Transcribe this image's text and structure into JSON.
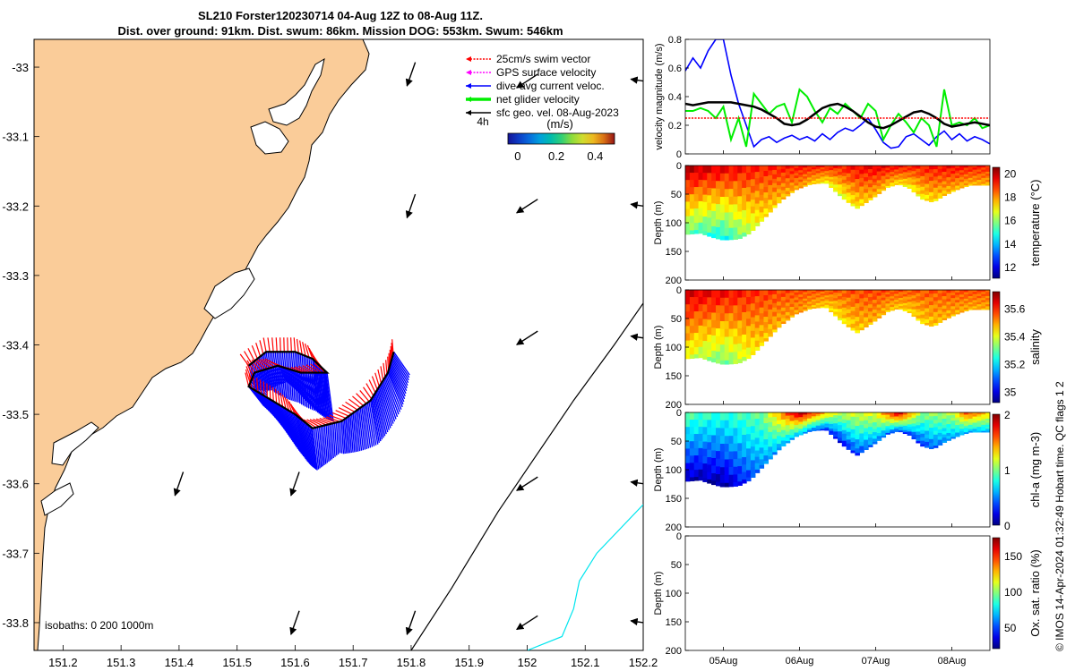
{
  "title_line1": "SL210 Forster120230714 04-Aug 12Z to 08-Aug 11Z.",
  "title_line2": "Dist. over ground: 91km. Dist. swum: 86km. Mission DOG: 553km. Swum: 546km",
  "footer_credit": "© IMOS 14-Apr-2024 01:32:49 Hobart time. QC flags 1  2",
  "colors": {
    "land": "#FACC99",
    "swim_vector": "#FF0000",
    "gps_velocity": "#FF00FF",
    "current": "#0000FF",
    "net_velocity": "#00EE00",
    "geo_velocity": "#000000",
    "isobath_200": "#000000",
    "isobath_1000": "#00E5EE"
  },
  "chart_data": [
    {
      "type": "map",
      "name": "glider track map",
      "xlim": [
        151.15,
        152.2
      ],
      "ylim": [
        -33.84,
        -32.96
      ],
      "x_ticks": [
        "151.2",
        "151.3",
        "151.4",
        "151.5",
        "151.6",
        "151.7",
        "151.8",
        "151.9",
        "152",
        "152.1",
        "152.2"
      ],
      "x_tick_values": [
        151.2,
        151.3,
        151.4,
        151.5,
        151.6,
        151.7,
        151.8,
        151.9,
        152.0,
        152.1,
        152.2
      ],
      "y_ticks": [
        "-33",
        "-33.1",
        "-33.2",
        "-33.3",
        "-33.4",
        "-33.5",
        "-33.6",
        "-33.7",
        "-33.8"
      ],
      "y_tick_values": [
        -33.0,
        -33.1,
        -33.2,
        -33.3,
        -33.4,
        -33.5,
        -33.6,
        -33.7,
        -33.8
      ],
      "legend": [
        {
          "label": "25cm/s swim vector",
          "color": "#FF0000",
          "style": "dotted-arrow"
        },
        {
          "label": "GPS surface velocity",
          "color": "#FF00FF",
          "style": "dotted-arrow"
        },
        {
          "label": "dive-avg current veloc.",
          "color": "#0000FF",
          "style": "arrow"
        },
        {
          "label": "net glider velocity",
          "color": "#00EE00",
          "style": "thick-arrow"
        },
        {
          "label": "sfc geo. vel. 08-Aug-2023",
          "color": "#000000",
          "style": "arrow"
        }
      ],
      "colorbar": {
        "label": "(m/s)",
        "ticks": [
          "0",
          "0.2",
          "0.4"
        ],
        "range": [
          -0.05,
          0.5
        ],
        "period_label": "4h"
      },
      "isobath_label": "isobaths: 0  200  1000m",
      "track": [
        [
          151.52,
          -33.43
        ],
        [
          151.55,
          -33.41
        ],
        [
          151.6,
          -33.41
        ],
        [
          151.63,
          -33.42
        ],
        [
          151.655,
          -33.44
        ],
        [
          151.61,
          -33.44
        ],
        [
          151.57,
          -33.43
        ],
        [
          151.53,
          -33.44
        ],
        [
          151.52,
          -33.46
        ],
        [
          151.56,
          -33.48
        ],
        [
          151.6,
          -33.5
        ],
        [
          151.63,
          -33.52
        ],
        [
          151.68,
          -33.51
        ],
        [
          151.73,
          -33.48
        ],
        [
          151.76,
          -33.44
        ],
        [
          151.77,
          -33.41
        ]
      ],
      "isobath_200": [
        [
          151.8,
          -33.84
        ],
        [
          151.87,
          -33.75
        ],
        [
          151.95,
          -33.64
        ],
        [
          152.08,
          -33.48
        ],
        [
          152.15,
          -33.4
        ],
        [
          152.2,
          -33.34
        ]
      ],
      "isobath_1000": [
        [
          152.0,
          -33.84
        ],
        [
          152.06,
          -33.82
        ],
        [
          152.08,
          -33.78
        ],
        [
          152.09,
          -33.74
        ],
        [
          152.12,
          -33.7
        ],
        [
          152.2,
          -33.63
        ]
      ],
      "geo_arrows": [
        {
          "lon": 151.8,
          "lat": -33.01,
          "dir": "SSW"
        },
        {
          "lon": 152.0,
          "lat": -33.02,
          "dir": "SW"
        },
        {
          "lon": 152.2,
          "lat": -33.02,
          "dir": "W"
        },
        {
          "lon": 151.8,
          "lat": -33.2,
          "dir": "SSW"
        },
        {
          "lon": 152.0,
          "lat": -33.2,
          "dir": "SW"
        },
        {
          "lon": 152.2,
          "lat": -33.2,
          "dir": "W"
        },
        {
          "lon": 152.0,
          "lat": -33.39,
          "dir": "SW"
        },
        {
          "lon": 152.2,
          "lat": -33.39,
          "dir": "W"
        },
        {
          "lon": 151.4,
          "lat": -33.6,
          "dir": "SSW"
        },
        {
          "lon": 151.6,
          "lat": -33.6,
          "dir": "SSW"
        },
        {
          "lon": 152.0,
          "lat": -33.6,
          "dir": "SW"
        },
        {
          "lon": 152.2,
          "lat": -33.6,
          "dir": "W"
        },
        {
          "lon": 151.6,
          "lat": -33.8,
          "dir": "SSW"
        },
        {
          "lon": 151.8,
          "lat": -33.8,
          "dir": "SSW"
        },
        {
          "lon": 152.0,
          "lat": -33.8,
          "dir": "SW"
        },
        {
          "lon": 152.2,
          "lat": -33.8,
          "dir": "W"
        }
      ]
    },
    {
      "type": "line",
      "name": "velocity magnitude",
      "ylabel": "velocity magnitude (m/s)",
      "ylim": [
        0,
        0.8
      ],
      "y_ticks": [
        "0",
        "0.2",
        "0.4",
        "0.6",
        "0.8"
      ],
      "x": [
        4.5,
        4.6,
        4.7,
        4.8,
        4.9,
        5.0,
        5.1,
        5.2,
        5.3,
        5.4,
        5.5,
        5.6,
        5.7,
        5.8,
        5.9,
        6.0,
        6.1,
        6.2,
        6.3,
        6.4,
        6.5,
        6.6,
        6.7,
        6.8,
        6.9,
        7.0,
        7.1,
        7.2,
        7.3,
        7.4,
        7.5,
        7.6,
        7.7,
        7.8,
        7.9,
        8.0,
        8.1,
        8.2,
        8.3,
        8.4,
        8.5
      ],
      "series": [
        {
          "color": "#0000FF",
          "values": [
            0.58,
            0.67,
            0.6,
            0.72,
            0.8,
            0.8,
            0.55,
            0.35,
            0.2,
            0.05,
            0.1,
            0.12,
            0.08,
            0.11,
            0.13,
            0.1,
            0.12,
            0.09,
            0.14,
            0.1,
            0.15,
            0.18,
            0.16,
            0.2,
            0.25,
            0.17,
            0.08,
            0.04,
            0.05,
            0.12,
            0.14,
            0.1,
            0.06,
            0.12,
            0.16,
            0.1,
            0.14,
            0.09,
            0.12,
            0.1,
            0.07
          ]
        },
        {
          "color": "#00EE00",
          "values": [
            0.3,
            0.3,
            0.32,
            0.3,
            0.25,
            0.33,
            0.1,
            0.25,
            0.05,
            0.42,
            0.35,
            0.28,
            0.33,
            0.35,
            0.22,
            0.45,
            0.4,
            0.3,
            0.22,
            0.32,
            0.28,
            0.35,
            0.3,
            0.25,
            0.35,
            0.3,
            0.1,
            0.2,
            0.28,
            0.22,
            0.15,
            0.25,
            0.2,
            0.05,
            0.45,
            0.2,
            0.22,
            0.2,
            0.25,
            0.18,
            0.2
          ]
        },
        {
          "color": "#000000",
          "values": [
            0.35,
            0.34,
            0.35,
            0.36,
            0.36,
            0.36,
            0.36,
            0.35,
            0.34,
            0.33,
            0.31,
            0.28,
            0.25,
            0.21,
            0.2,
            0.21,
            0.24,
            0.28,
            0.32,
            0.34,
            0.35,
            0.33,
            0.3,
            0.26,
            0.22,
            0.19,
            0.18,
            0.2,
            0.23,
            0.26,
            0.29,
            0.3,
            0.28,
            0.25,
            0.21,
            0.19,
            0.2,
            0.21,
            0.22,
            0.21,
            0.2
          ]
        },
        {
          "color": "#FF0000",
          "values": [
            0.25,
            0.25,
            0.25,
            0.25,
            0.25,
            0.25,
            0.25,
            0.25,
            0.25,
            0.25,
            0.25,
            0.25,
            0.25,
            0.25,
            0.25,
            0.25,
            0.25,
            0.25,
            0.25,
            0.25,
            0.25,
            0.25,
            0.25,
            0.25,
            0.25,
            0.25,
            0.25,
            0.25,
            0.25,
            0.25,
            0.25,
            0.25,
            0.25,
            0.25,
            0.25,
            0.25,
            0.25,
            0.25,
            0.25,
            0.25,
            0.25
          ]
        }
      ]
    },
    {
      "type": "heatmap",
      "name": "temperature section",
      "ylabel": "Depth (m)",
      "cbar_label": "temperature (°C)",
      "cbar_ticks": [
        "12",
        "14",
        "16",
        "18",
        "20"
      ],
      "cbar_range": [
        11,
        20.5
      ],
      "ylim": [
        200,
        0
      ],
      "y_ticks": [
        "0",
        "50",
        "100",
        "150",
        "200"
      ],
      "x_ticks": [
        "05Aug",
        "06Aug",
        "07Aug",
        "08Aug"
      ],
      "bottom_depth": [
        [
          4.5,
          120
        ],
        [
          4.7,
          118
        ],
        [
          4.85,
          125
        ],
        [
          5.0,
          130
        ],
        [
          5.2,
          128
        ],
        [
          5.35,
          118
        ],
        [
          5.55,
          90
        ],
        [
          5.75,
          62
        ],
        [
          5.95,
          42
        ],
        [
          6.15,
          32
        ],
        [
          6.35,
          30
        ],
        [
          6.55,
          55
        ],
        [
          6.75,
          75
        ],
        [
          6.95,
          58
        ],
        [
          7.15,
          38
        ],
        [
          7.3,
          32
        ],
        [
          7.45,
          40
        ],
        [
          7.6,
          58
        ],
        [
          7.75,
          64
        ],
        [
          7.9,
          52
        ],
        [
          8.1,
          40
        ],
        [
          8.25,
          34
        ],
        [
          8.5,
          34
        ]
      ],
      "profile_top": [
        [
          4.5,
          20
        ],
        [
          5.0,
          19.4
        ],
        [
          5.5,
          19.0
        ],
        [
          6.0,
          19.2
        ],
        [
          6.5,
          19.0
        ],
        [
          7.0,
          19.5
        ],
        [
          7.5,
          19.0
        ],
        [
          8.0,
          19.3
        ],
        [
          8.5,
          19.0
        ]
      ],
      "profile_bottom": [
        [
          4.5,
          15.5
        ],
        [
          5.0,
          14.5
        ],
        [
          5.5,
          17.0
        ],
        [
          6.0,
          17.8
        ],
        [
          6.5,
          16.5
        ],
        [
          7.0,
          17.5
        ],
        [
          7.5,
          16.8
        ],
        [
          8.0,
          17.5
        ],
        [
          8.5,
          17.6
        ]
      ]
    },
    {
      "type": "heatmap",
      "name": "salinity section",
      "ylabel": "Depth (m)",
      "cbar_label": "salinity",
      "cbar_ticks": [
        "35",
        "35.2",
        "35.4",
        "35.6"
      ],
      "cbar_range": [
        34.92,
        35.72
      ],
      "ylim": [
        200,
        0
      ],
      "y_ticks": [
        "0",
        "50",
        "100",
        "150",
        "200"
      ],
      "x_ticks": [
        "05Aug",
        "06Aug",
        "07Aug",
        "08Aug"
      ],
      "profile_top": [
        [
          4.5,
          35.65
        ],
        [
          5.0,
          35.62
        ],
        [
          5.5,
          35.58
        ],
        [
          6.0,
          35.56
        ],
        [
          6.5,
          35.55
        ],
        [
          7.0,
          35.57
        ],
        [
          7.5,
          35.55
        ],
        [
          8.0,
          35.56
        ],
        [
          8.5,
          35.56
        ]
      ],
      "profile_bottom": [
        [
          4.5,
          35.4
        ],
        [
          5.0,
          35.3
        ],
        [
          5.5,
          35.45
        ],
        [
          6.0,
          35.5
        ],
        [
          6.5,
          35.42
        ],
        [
          7.0,
          35.48
        ],
        [
          7.5,
          35.44
        ],
        [
          8.0,
          35.48
        ],
        [
          8.5,
          35.48
        ]
      ]
    },
    {
      "type": "heatmap",
      "name": "chlorophyll section",
      "ylabel": "Depth (m)",
      "cbar_label": "chl-a (mg m-3)",
      "cbar_ticks": [
        "0",
        "1",
        "2"
      ],
      "cbar_range": [
        0,
        2
      ],
      "ylim": [
        200,
        0
      ],
      "y_ticks": [
        "0",
        "50",
        "100",
        "150",
        "200"
      ],
      "x_ticks": [
        "05Aug",
        "06Aug",
        "07Aug",
        "08Aug"
      ],
      "profile_top": [
        [
          4.5,
          0.9
        ],
        [
          5.0,
          0.8
        ],
        [
          5.5,
          0.95
        ],
        [
          6.0,
          1.9
        ],
        [
          6.5,
          1.1
        ],
        [
          7.0,
          1.2
        ],
        [
          7.3,
          1.85
        ],
        [
          7.6,
          1.0
        ],
        [
          8.0,
          1.1
        ],
        [
          8.2,
          1.6
        ],
        [
          8.5,
          1.3
        ]
      ],
      "profile_bottom": [
        [
          4.5,
          0.1
        ],
        [
          5.0,
          0.05
        ],
        [
          5.5,
          0.5
        ],
        [
          6.0,
          0.6
        ],
        [
          6.5,
          0.2
        ],
        [
          7.0,
          0.5
        ],
        [
          7.5,
          0.3
        ],
        [
          8.0,
          0.55
        ],
        [
          8.5,
          0.6
        ]
      ]
    },
    {
      "type": "heatmap",
      "name": "oxygen saturation section",
      "ylabel": "Depth (m)",
      "cbar_label": "Ox. sat. ratio (%)",
      "cbar_ticks": [
        "50",
        "100",
        "150"
      ],
      "cbar_range": [
        20,
        175
      ],
      "ylim": [
        200,
        0
      ],
      "y_ticks": [
        "0",
        "50",
        "100",
        "150",
        "200"
      ],
      "x_ticks": [
        "05Aug",
        "06Aug",
        "07Aug",
        "08Aug"
      ],
      "values": []
    }
  ]
}
